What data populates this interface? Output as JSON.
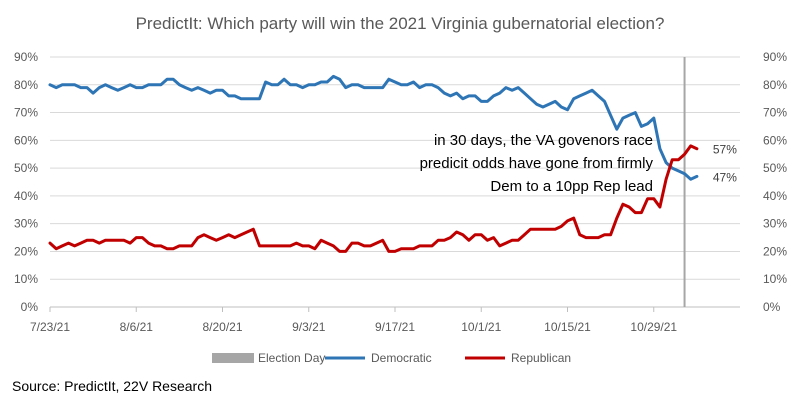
{
  "chart_data": {
    "type": "line",
    "title": "PredictIt: Which party will win the 2021 Virginia gubernatorial election?",
    "y_ticks": [
      "0%",
      "10%",
      "20%",
      "30%",
      "40%",
      "50%",
      "60%",
      "70%",
      "80%",
      "90%"
    ],
    "ylim": [
      0,
      90
    ],
    "x_start": "7/23/21",
    "x_labels": [
      {
        "label": "7/23/21",
        "day": 0
      },
      {
        "label": "8/6/21",
        "day": 14
      },
      {
        "label": "8/20/21",
        "day": 28
      },
      {
        "label": "9/3/21",
        "day": 42
      },
      {
        "label": "9/17/21",
        "day": 56
      },
      {
        "label": "10/1/21",
        "day": 70
      },
      {
        "label": "10/15/21",
        "day": 84
      },
      {
        "label": "10/29/21",
        "day": 98
      }
    ],
    "xlim_days": [
      0,
      112
    ],
    "election_day": 103,
    "series": [
      {
        "name": "Democratic",
        "color": "#2E75B6",
        "end_label": "47%",
        "values": [
          80,
          79,
          80,
          80,
          80,
          79,
          79,
          77,
          79,
          80,
          79,
          78,
          79,
          80,
          79,
          79,
          80,
          80,
          80,
          82,
          82,
          80,
          79,
          78,
          79,
          78,
          77,
          78,
          78,
          76,
          76,
          75,
          75,
          75,
          75,
          81,
          80,
          80,
          82,
          80,
          80,
          79,
          80,
          80,
          81,
          81,
          83,
          82,
          79,
          80,
          80,
          79,
          79,
          79,
          79,
          82,
          81,
          80,
          80,
          81,
          79,
          80,
          80,
          79,
          77,
          76,
          77,
          75,
          76,
          76,
          74,
          74,
          76,
          77,
          79,
          78,
          79,
          77,
          75,
          73,
          72,
          73,
          74,
          72,
          71,
          75,
          76,
          77,
          78,
          76,
          74,
          69,
          64,
          68,
          69,
          70,
          65,
          66,
          68,
          57,
          52,
          50,
          49,
          48,
          46,
          47
        ]
      },
      {
        "name": "Republican",
        "color": "#C00000",
        "end_label": "57%",
        "values": [
          23,
          21,
          22,
          23,
          22,
          23,
          24,
          24,
          23,
          24,
          24,
          24,
          24,
          23,
          25,
          25,
          23,
          22,
          22,
          21,
          21,
          22,
          22,
          22,
          25,
          26,
          25,
          24,
          25,
          26,
          25,
          26,
          27,
          28,
          22,
          22,
          22,
          22,
          22,
          22,
          23,
          22,
          22,
          21,
          24,
          23,
          22,
          20,
          20,
          23,
          23,
          22,
          22,
          23,
          24,
          20,
          20,
          21,
          21,
          21,
          22,
          22,
          22,
          24,
          24,
          25,
          27,
          26,
          24,
          26,
          26,
          24,
          25,
          22,
          23,
          24,
          24,
          26,
          28,
          28,
          28,
          28,
          28,
          29,
          31,
          32,
          26,
          25,
          25,
          25,
          26,
          26,
          32,
          37,
          36,
          34,
          34,
          39,
          39,
          36,
          46,
          53,
          53,
          55,
          58,
          57
        ]
      }
    ],
    "annotation": [
      "in 30 days, the VA govenors race",
      "predicit odds have gone from firmly",
      "Dem to a 10pp Rep lead"
    ],
    "legend": [
      "Election Day",
      "Democratic",
      "Republican"
    ],
    "colors": {
      "election_day": "#A6A6A6",
      "grid": "#D9D9D9",
      "axis": "#BFBFBF"
    },
    "source": "Source: PredictIt, 22V Research"
  }
}
